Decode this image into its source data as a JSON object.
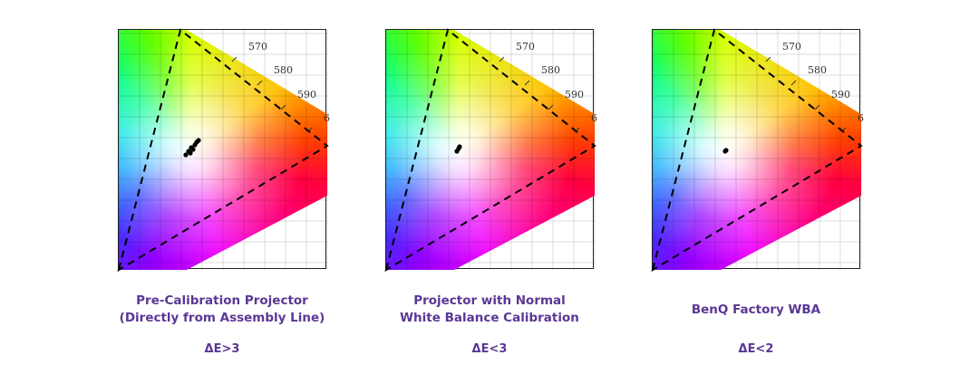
{
  "panels": [
    {
      "wavelengths": [
        "570",
        "580",
        "590",
        "6"
      ],
      "caption": [
        "Pre-Calibration Projector",
        "(Directly from Assembly Line)"
      ],
      "delta_e": "ΔE>3"
    },
    {
      "wavelengths": [
        "570",
        "580",
        "590",
        "6"
      ],
      "caption": [
        "Projector with Normal",
        "White Balance Calibration"
      ],
      "delta_e": "ΔE<3"
    },
    {
      "wavelengths": [
        "570",
        "580",
        "590",
        "6"
      ],
      "caption": [
        "BenQ Factory WBA"
      ],
      "delta_e": "ΔE<2"
    }
  ]
}
